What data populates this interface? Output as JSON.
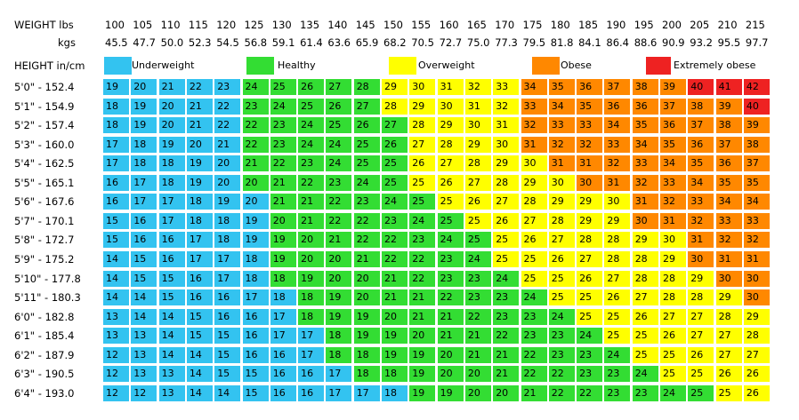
{
  "headers": {
    "weight_label": "WEIGHT lbs",
    "kgs_label": "kgs",
    "height_label": "HEIGHT in/cm"
  },
  "colors": {
    "underweight": "#33c3f0",
    "healthy": "#33dd33",
    "overweight": "#ffff00",
    "obese": "#ff8800",
    "extremely_obese": "#ee2222"
  },
  "legend": [
    {
      "label": "Underweight",
      "color": "#33c3f0"
    },
    {
      "label": "Healthy",
      "color": "#33dd33"
    },
    {
      "label": "Overweight",
      "color": "#ffff00"
    },
    {
      "label": "Obese",
      "color": "#ff8800"
    },
    {
      "label": "Extremely obese",
      "color": "#ee2222"
    }
  ],
  "chart_data": {
    "type": "table",
    "title": "",
    "weights_lbs": [
      "100",
      "105",
      "110",
      "115",
      "120",
      "125",
      "130",
      "135",
      "140",
      "145",
      "150",
      "155",
      "160",
      "165",
      "170",
      "175",
      "180",
      "185",
      "190",
      "195",
      "200",
      "205",
      "210",
      "215"
    ],
    "weights_kgs": [
      "45.5",
      "47.7",
      "50.0",
      "52.3",
      "54.5",
      "56.8",
      "59.1",
      "61.4",
      "63.6",
      "65.9",
      "68.2",
      "70.5",
      "72.7",
      "75.0",
      "77.3",
      "79.5",
      "81.8",
      "84.1",
      "86.4",
      "88.6",
      "90.9",
      "93.2",
      "95.5",
      "97.7"
    ],
    "heights": [
      "5'0\" - 152.4",
      "5'1\" - 154.9",
      "5'2\" - 157.4",
      "5'3\" - 160.0",
      "5'4\" - 162.5",
      "5'5\" - 165.1",
      "5'6\" - 167.6",
      "5'7\" - 170.1",
      "5'8\" - 172.7",
      "5'9\" - 175.2",
      "5'10\" - 177.8",
      "5'11\" - 180.3",
      "6'0\" - 182.8",
      "6'1\" - 185.4",
      "6'2\" - 187.9",
      "6'3\" - 190.5",
      "6'4\" - 193.0"
    ],
    "values": [
      [
        19,
        20,
        21,
        22,
        23,
        24,
        25,
        26,
        27,
        28,
        29,
        30,
        31,
        32,
        33,
        34,
        35,
        36,
        37,
        38,
        39,
        40,
        41,
        42
      ],
      [
        18,
        19,
        20,
        21,
        22,
        23,
        24,
        25,
        26,
        27,
        28,
        29,
        30,
        31,
        32,
        33,
        34,
        35,
        36,
        36,
        37,
        38,
        39,
        40
      ],
      [
        18,
        19,
        20,
        21,
        22,
        22,
        23,
        24,
        25,
        26,
        27,
        28,
        29,
        30,
        31,
        32,
        33,
        33,
        34,
        35,
        36,
        37,
        38,
        39
      ],
      [
        17,
        18,
        19,
        20,
        21,
        22,
        23,
        24,
        24,
        25,
        26,
        27,
        28,
        29,
        30,
        31,
        32,
        32,
        33,
        34,
        35,
        36,
        37,
        38
      ],
      [
        17,
        18,
        18,
        19,
        20,
        21,
        22,
        23,
        24,
        25,
        25,
        26,
        27,
        28,
        29,
        30,
        31,
        31,
        32,
        33,
        34,
        35,
        36,
        37
      ],
      [
        16,
        17,
        18,
        19,
        20,
        20,
        21,
        22,
        23,
        24,
        25,
        25,
        26,
        27,
        28,
        29,
        30,
        30,
        31,
        32,
        33,
        34,
        35,
        35
      ],
      [
        16,
        17,
        17,
        18,
        19,
        20,
        21,
        21,
        22,
        23,
        24,
        25,
        25,
        26,
        27,
        28,
        29,
        29,
        30,
        31,
        32,
        33,
        34,
        34
      ],
      [
        15,
        16,
        17,
        18,
        18,
        19,
        20,
        21,
        22,
        22,
        23,
        24,
        25,
        25,
        26,
        27,
        28,
        29,
        29,
        30,
        31,
        32,
        33,
        33
      ],
      [
        15,
        16,
        16,
        17,
        18,
        19,
        19,
        20,
        21,
        22,
        22,
        23,
        24,
        25,
        25,
        26,
        27,
        28,
        28,
        29,
        30,
        31,
        32,
        32
      ],
      [
        14,
        15,
        16,
        17,
        17,
        18,
        19,
        20,
        20,
        21,
        22,
        22,
        23,
        24,
        25,
        25,
        26,
        27,
        28,
        28,
        29,
        30,
        31,
        31
      ],
      [
        14,
        15,
        15,
        16,
        17,
        18,
        18,
        19,
        20,
        20,
        21,
        22,
        23,
        23,
        24,
        25,
        25,
        26,
        27,
        28,
        28,
        29,
        30,
        30
      ],
      [
        14,
        14,
        15,
        16,
        16,
        17,
        18,
        18,
        19,
        20,
        21,
        21,
        22,
        23,
        23,
        24,
        25,
        25,
        26,
        27,
        28,
        28,
        29,
        30
      ],
      [
        13,
        14,
        14,
        15,
        16,
        16,
        17,
        18,
        19,
        19,
        20,
        21,
        21,
        22,
        23,
        23,
        24,
        25,
        25,
        26,
        27,
        27,
        28,
        29
      ],
      [
        13,
        13,
        14,
        15,
        15,
        16,
        17,
        17,
        18,
        19,
        19,
        20,
        21,
        21,
        22,
        23,
        23,
        24,
        25,
        25,
        26,
        27,
        27,
        28
      ],
      [
        12,
        13,
        14,
        14,
        15,
        16,
        16,
        17,
        18,
        18,
        19,
        19,
        20,
        21,
        21,
        22,
        23,
        23,
        24,
        25,
        25,
        26,
        27,
        27
      ],
      [
        12,
        13,
        13,
        14,
        15,
        15,
        16,
        16,
        17,
        18,
        18,
        19,
        20,
        20,
        21,
        22,
        22,
        23,
        23,
        24,
        25,
        25,
        26,
        26
      ],
      [
        12,
        12,
        13,
        14,
        14,
        15,
        16,
        16,
        17,
        17,
        18,
        19,
        19,
        20,
        20,
        21,
        22,
        22,
        23,
        23,
        24,
        25,
        25,
        26
      ]
    ],
    "colors": [
      "UUUUUHHHHHOOOOOBBBBBBXXX",
      "UUUUUHHHHHOOOOOBBBBBBBBX",
      "UUUUUHHHHHHOOOOBBBBBBBBB",
      "UUUUUHHHHHHOOOOBBBBBBBBB",
      "UUUUUHHHHHHOOOOOBBBBBBBB",
      "UUUUUHHHHHHOOOOOOBBBBBBB",
      "UUUUUUHHHHHHOOOOOOOBBBBB",
      "UUUUUUHHHHHHHOOOOOOBBBBB",
      "UUUUUUHHHHHHHHOOOOOOOBBB",
      "UUUUUUHHHHHHHHOOOOOOOBBB",
      "UUUUUUHHHHHHHHHOOOOOOOBB",
      "UUUUUUUHHHHHHHHHOOOOOOOB",
      "UUUUUUUHHHHHHHHHHOOOOOOO",
      "UUUUUUUUHHHHHHHHHHOOOOOO",
      "UUUUUUUUHHHHHHHHHHHOOOOO",
      "UUUUUUUUUHHHHHHHHHHHOOOO",
      "UUUUUUUUUUUHHHHHHHHHHHOO"
    ],
    "color_key": {
      "U": "underweight",
      "H": "healthy",
      "O": "overweight",
      "B": "obese",
      "X": "extremely_obese"
    }
  }
}
